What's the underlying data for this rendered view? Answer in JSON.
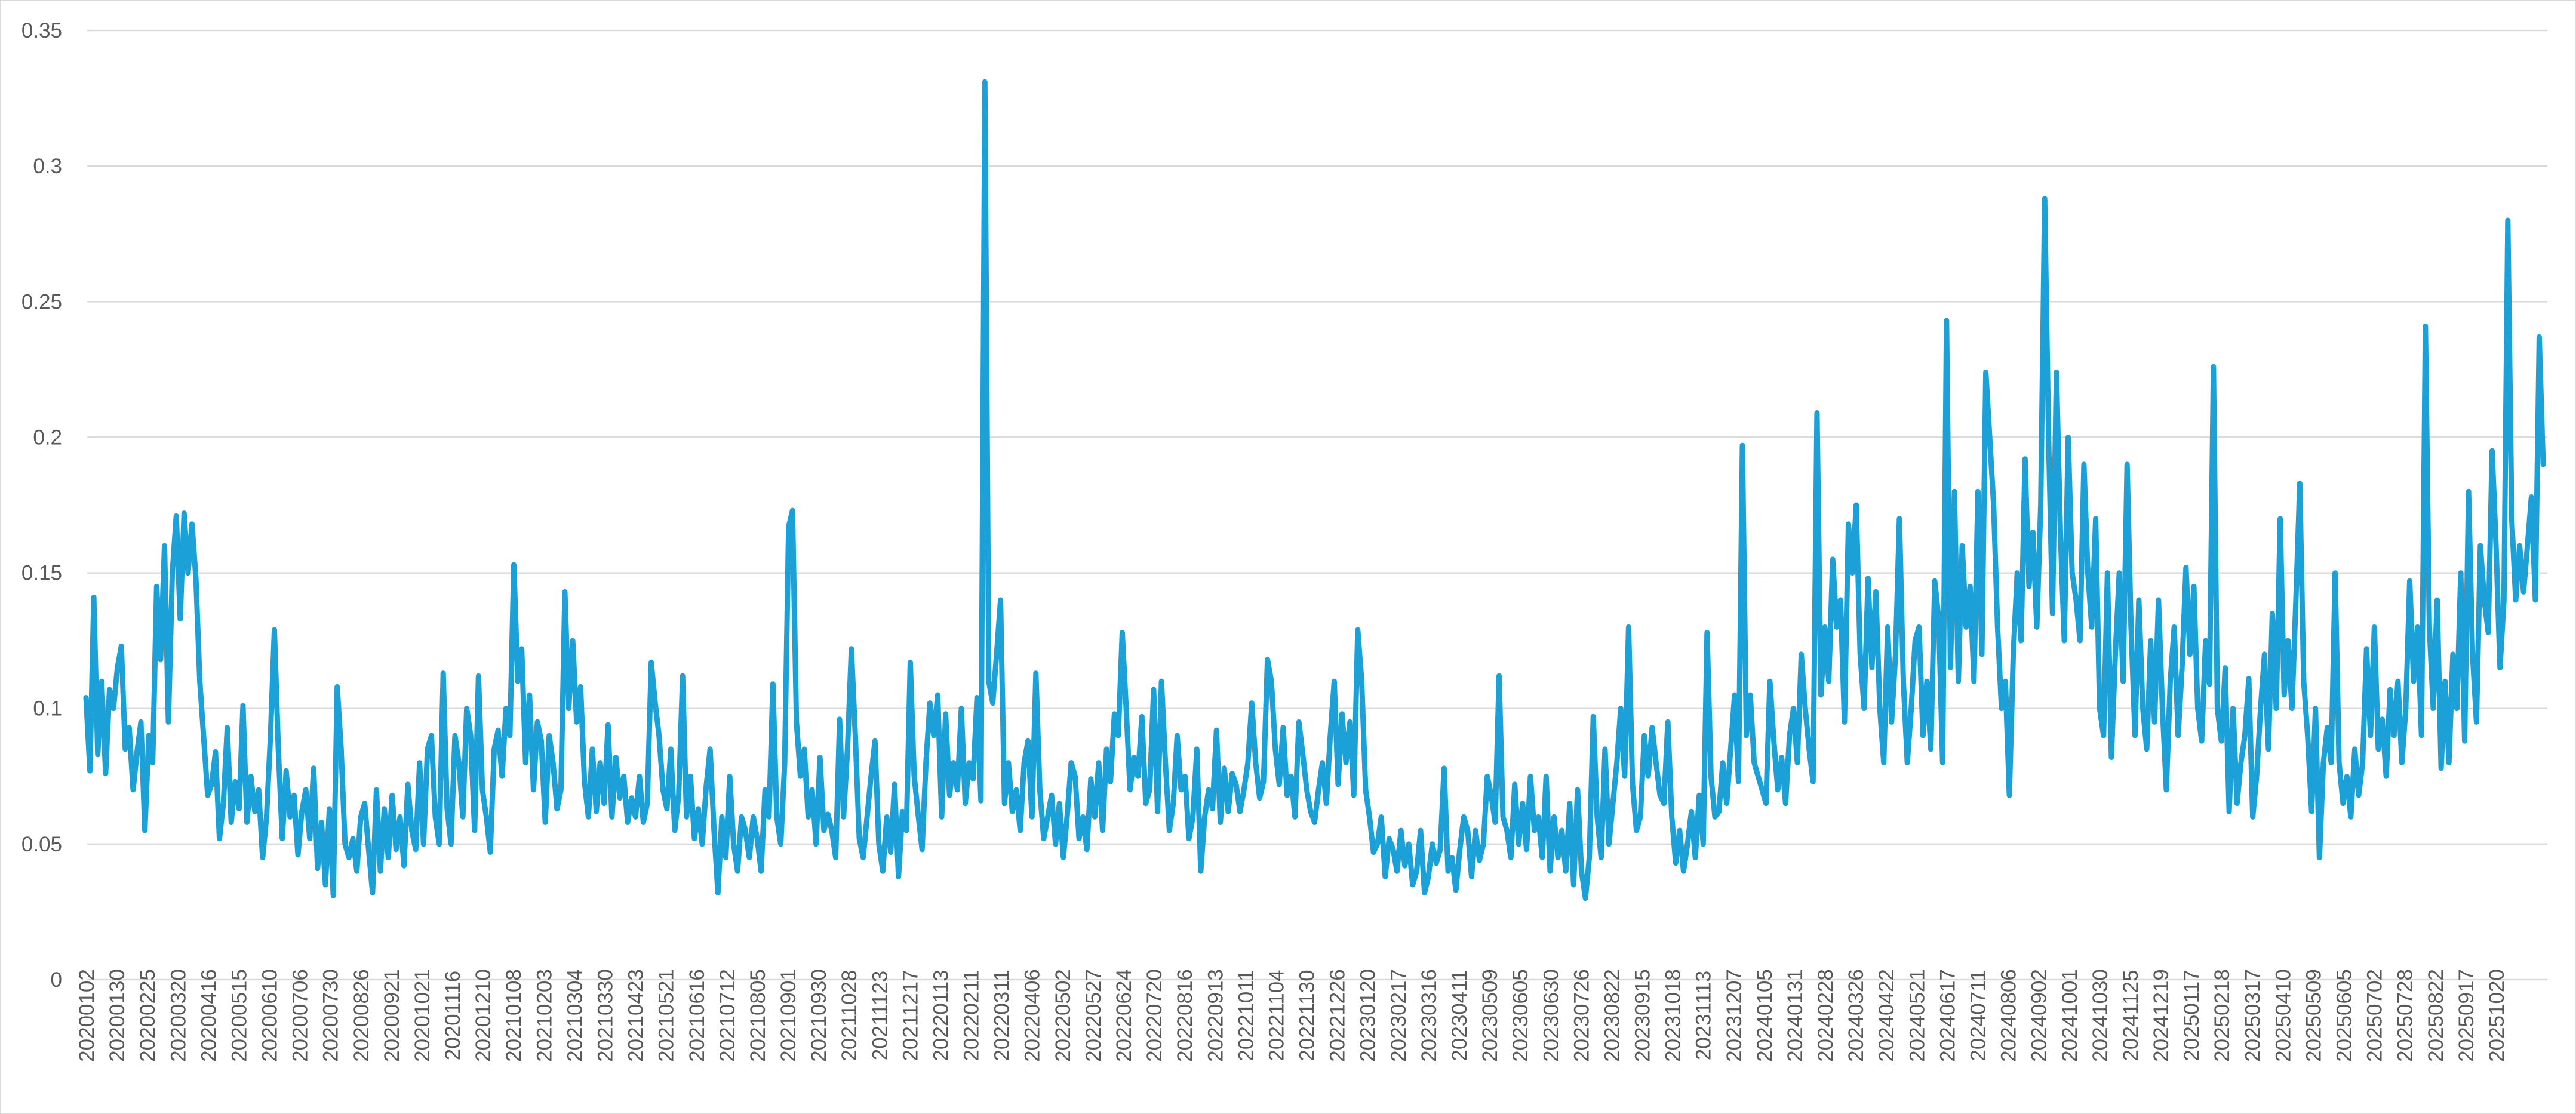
{
  "chart_data": {
    "type": "line",
    "title": "",
    "xlabel": "",
    "ylabel": "",
    "ylim": [
      0,
      0.35
    ],
    "y_ticks": [
      "0",
      "0.05",
      "0.1",
      "0.15",
      "0.2",
      "0.25",
      "0.3",
      "0.35"
    ],
    "grid": "horizontal",
    "legend": "none",
    "line_color": "#1BA1D8",
    "x_tick_labels": [
      "20200102",
      "20200130",
      "20200225",
      "20200320",
      "20200416",
      "20200515",
      "20200610",
      "20200706",
      "20200730",
      "20200826",
      "20200921",
      "20201021",
      "20201116",
      "20201210",
      "20210108",
      "20210203",
      "20210304",
      "20210330",
      "20210423",
      "20210521",
      "20210616",
      "20210712",
      "20210805",
      "20210901",
      "20210930",
      "20211028",
      "20211123",
      "20211217",
      "20220113",
      "20220211",
      "20220311",
      "20220406",
      "20220502",
      "20220527",
      "20220624",
      "20220720",
      "20220816",
      "20220913",
      "20221011",
      "20221104",
      "20221130",
      "20221226",
      "20230120",
      "20230217",
      "20230316",
      "20230411",
      "20230509",
      "20230605",
      "20230630",
      "20230726",
      "20230822",
      "20230915",
      "20231018",
      "20231113",
      "20231207",
      "20240105",
      "20240131",
      "20240228",
      "20240326",
      "20240422",
      "20240521",
      "20240617",
      "20240711",
      "20240806",
      "20240902",
      "20241001",
      "20241030",
      "20241125",
      "20241219",
      "20250117",
      "20250218",
      "20250317",
      "20250410",
      "20250509",
      "20250605",
      "20250702",
      "20250728",
      "20250822",
      "20250917",
      "20251020"
    ],
    "series": [
      {
        "values": [
          0.104,
          0.077,
          0.141,
          0.083,
          0.11,
          0.076,
          0.107,
          0.1,
          0.115,
          0.123,
          0.085,
          0.093,
          0.07,
          0.084,
          0.095,
          0.055,
          0.09,
          0.08,
          0.145,
          0.118,
          0.16,
          0.095,
          0.15,
          0.171,
          0.133,
          0.172,
          0.15,
          0.168,
          0.148,
          0.11,
          0.089,
          0.068,
          0.072,
          0.084,
          0.052,
          0.065,
          0.093,
          0.058,
          0.073,
          0.063,
          0.101,
          0.058,
          0.075,
          0.062,
          0.07,
          0.045,
          0.06,
          0.09,
          0.129,
          0.085,
          0.052,
          0.077,
          0.06,
          0.068,
          0.046,
          0.062,
          0.07,
          0.052,
          0.078,
          0.041,
          0.058,
          0.035,
          0.063,
          0.031,
          0.108,
          0.085,
          0.05,
          0.045,
          0.052,
          0.04,
          0.06,
          0.065,
          0.048,
          0.032,
          0.07,
          0.04,
          0.063,
          0.045,
          0.068,
          0.048,
          0.06,
          0.042,
          0.072,
          0.055,
          0.048,
          0.08,
          0.05,
          0.085,
          0.09,
          0.06,
          0.05,
          0.113,
          0.063,
          0.05,
          0.09,
          0.08,
          0.06,
          0.1,
          0.09,
          0.055,
          0.112,
          0.07,
          0.06,
          0.047,
          0.085,
          0.092,
          0.075,
          0.1,
          0.09,
          0.153,
          0.11,
          0.122,
          0.08,
          0.105,
          0.07,
          0.095,
          0.088,
          0.058,
          0.09,
          0.08,
          0.063,
          0.07,
          0.143,
          0.1,
          0.125,
          0.095,
          0.108,
          0.073,
          0.06,
          0.085,
          0.062,
          0.08,
          0.065,
          0.094,
          0.06,
          0.082,
          0.067,
          0.075,
          0.058,
          0.067,
          0.06,
          0.075,
          0.058,
          0.065,
          0.117,
          0.102,
          0.09,
          0.07,
          0.063,
          0.085,
          0.055,
          0.068,
          0.112,
          0.06,
          0.075,
          0.052,
          0.063,
          0.05,
          0.071,
          0.085,
          0.055,
          0.032,
          0.06,
          0.045,
          0.075,
          0.05,
          0.04,
          0.06,
          0.055,
          0.045,
          0.06,
          0.052,
          0.04,
          0.07,
          0.06,
          0.109,
          0.06,
          0.05,
          0.08,
          0.167,
          0.173,
          0.095,
          0.075,
          0.085,
          0.06,
          0.07,
          0.05,
          0.082,
          0.055,
          0.061,
          0.055,
          0.045,
          0.096,
          0.06,
          0.085,
          0.122,
          0.09,
          0.052,
          0.045,
          0.06,
          0.075,
          0.088,
          0.05,
          0.04,
          0.06,
          0.047,
          0.072,
          0.038,
          0.062,
          0.055,
          0.117,
          0.075,
          0.061,
          0.048,
          0.08,
          0.102,
          0.09,
          0.105,
          0.06,
          0.098,
          0.068,
          0.08,
          0.07,
          0.1,
          0.065,
          0.08,
          0.074,
          0.104,
          0.066,
          0.331,
          0.11,
          0.102,
          0.12,
          0.14,
          0.065,
          0.08,
          0.062,
          0.07,
          0.055,
          0.08,
          0.088,
          0.06,
          0.113,
          0.07,
          0.052,
          0.06,
          0.068,
          0.05,
          0.065,
          0.045,
          0.061,
          0.08,
          0.075,
          0.052,
          0.06,
          0.048,
          0.074,
          0.06,
          0.08,
          0.055,
          0.085,
          0.073,
          0.098,
          0.09,
          0.128,
          0.1,
          0.07,
          0.082,
          0.075,
          0.097,
          0.065,
          0.07,
          0.107,
          0.062,
          0.11,
          0.08,
          0.055,
          0.065,
          0.09,
          0.07,
          0.075,
          0.052,
          0.06,
          0.085,
          0.04,
          0.06,
          0.07,
          0.063,
          0.092,
          0.058,
          0.078,
          0.062,
          0.076,
          0.072,
          0.062,
          0.07,
          0.08,
          0.102,
          0.08,
          0.067,
          0.073,
          0.118,
          0.11,
          0.085,
          0.072,
          0.093,
          0.068,
          0.075,
          0.06,
          0.095,
          0.083,
          0.07,
          0.062,
          0.058,
          0.07,
          0.08,
          0.065,
          0.09,
          0.11,
          0.072,
          0.098,
          0.08,
          0.095,
          0.068,
          0.129,
          0.11,
          0.07,
          0.06,
          0.047,
          0.05,
          0.06,
          0.038,
          0.052,
          0.048,
          0.04,
          0.055,
          0.042,
          0.05,
          0.035,
          0.04,
          0.055,
          0.032,
          0.038,
          0.05,
          0.043,
          0.048,
          0.078,
          0.04,
          0.045,
          0.033,
          0.048,
          0.06,
          0.055,
          0.038,
          0.055,
          0.044,
          0.05,
          0.075,
          0.068,
          0.058,
          0.112,
          0.06,
          0.055,
          0.045,
          0.072,
          0.05,
          0.065,
          0.048,
          0.075,
          0.055,
          0.06,
          0.045,
          0.075,
          0.04,
          0.06,
          0.045,
          0.055,
          0.04,
          0.065,
          0.035,
          0.07,
          0.04,
          0.03,
          0.045,
          0.097,
          0.06,
          0.045,
          0.085,
          0.05,
          0.065,
          0.08,
          0.1,
          0.075,
          0.13,
          0.072,
          0.055,
          0.06,
          0.09,
          0.075,
          0.093,
          0.08,
          0.068,
          0.065,
          0.095,
          0.06,
          0.043,
          0.055,
          0.04,
          0.05,
          0.062,
          0.045,
          0.068,
          0.05,
          0.128,
          0.075,
          0.06,
          0.062,
          0.08,
          0.065,
          0.085,
          0.105,
          0.073,
          0.197,
          0.09,
          0.105,
          0.08,
          0.075,
          0.07,
          0.065,
          0.11,
          0.088,
          0.07,
          0.082,
          0.065,
          0.09,
          0.1,
          0.08,
          0.12,
          0.1,
          0.085,
          0.073,
          0.209,
          0.105,
          0.13,
          0.11,
          0.155,
          0.13,
          0.14,
          0.095,
          0.168,
          0.15,
          0.175,
          0.12,
          0.1,
          0.148,
          0.115,
          0.143,
          0.1,
          0.08,
          0.13,
          0.095,
          0.12,
          0.17,
          0.11,
          0.08,
          0.1,
          0.125,
          0.13,
          0.09,
          0.11,
          0.085,
          0.147,
          0.133,
          0.08,
          0.243,
          0.115,
          0.18,
          0.11,
          0.16,
          0.13,
          0.145,
          0.11,
          0.18,
          0.12,
          0.224,
          0.2,
          0.175,
          0.13,
          0.1,
          0.11,
          0.068,
          0.12,
          0.15,
          0.125,
          0.192,
          0.145,
          0.165,
          0.13,
          0.175,
          0.288,
          0.2,
          0.135,
          0.224,
          0.165,
          0.125,
          0.2,
          0.15,
          0.14,
          0.125,
          0.19,
          0.15,
          0.13,
          0.17,
          0.1,
          0.09,
          0.15,
          0.082,
          0.12,
          0.15,
          0.11,
          0.19,
          0.13,
          0.09,
          0.14,
          0.1,
          0.085,
          0.125,
          0.095,
          0.14,
          0.1,
          0.07,
          0.11,
          0.13,
          0.09,
          0.115,
          0.152,
          0.12,
          0.145,
          0.1,
          0.088,
          0.125,
          0.109,
          0.226,
          0.1,
          0.088,
          0.115,
          0.062,
          0.1,
          0.065,
          0.08,
          0.09,
          0.111,
          0.06,
          0.075,
          0.1,
          0.12,
          0.085,
          0.135,
          0.1,
          0.17,
          0.105,
          0.125,
          0.1,
          0.14,
          0.183,
          0.11,
          0.09,
          0.062,
          0.1,
          0.045,
          0.08,
          0.093,
          0.08,
          0.15,
          0.08,
          0.065,
          0.075,
          0.06,
          0.085,
          0.068,
          0.08,
          0.122,
          0.09,
          0.13,
          0.085,
          0.096,
          0.075,
          0.107,
          0.09,
          0.11,
          0.08,
          0.1,
          0.147,
          0.11,
          0.13,
          0.09,
          0.241,
          0.13,
          0.1,
          0.14,
          0.078,
          0.11,
          0.08,
          0.12,
          0.1,
          0.15,
          0.088,
          0.18,
          0.12,
          0.095,
          0.16,
          0.14,
          0.128,
          0.195,
          0.16,
          0.115,
          0.14,
          0.28,
          0.17,
          0.14,
          0.16,
          0.143,
          0.16,
          0.178,
          0.14,
          0.237,
          0.19
        ]
      }
    ]
  }
}
